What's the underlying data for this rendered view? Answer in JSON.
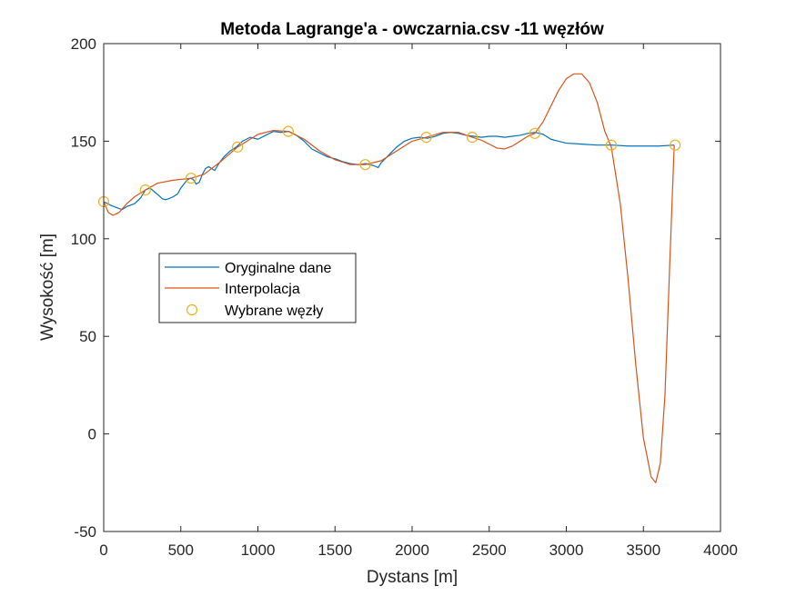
{
  "chart_data": {
    "type": "line",
    "title": "Metoda Lagrange'a - owczarnia.csv -11 węzłów",
    "xlabel": "Dystans [m]",
    "ylabel": "Wysokość [m]",
    "xlim": [
      0,
      4000
    ],
    "ylim": [
      -50,
      200
    ],
    "xticks": [
      0,
      500,
      1000,
      1500,
      2000,
      2500,
      3000,
      3500,
      4000
    ],
    "yticks": [
      -50,
      0,
      50,
      100,
      150,
      200
    ],
    "grid": false,
    "legend_position": "left-middle",
    "series": [
      {
        "name": "Oryginalne dane",
        "style": "line",
        "color": "#0072BD",
        "x": [
          0,
          50,
          100,
          120,
          150,
          200,
          240,
          270,
          300,
          330,
          360,
          380,
          400,
          420,
          450,
          480,
          500,
          520,
          540,
          560,
          580,
          600,
          620,
          640,
          660,
          680,
          700,
          720,
          750,
          780,
          820,
          860,
          900,
          950,
          1000,
          1050,
          1100,
          1150,
          1200,
          1250,
          1300,
          1350,
          1400,
          1450,
          1500,
          1550,
          1600,
          1650,
          1700,
          1750,
          1780,
          1800,
          1850,
          1900,
          1950,
          2000,
          2050,
          2100,
          2150,
          2200,
          2250,
          2300,
          2350,
          2400,
          2450,
          2500,
          2550,
          2600,
          2650,
          2700,
          2750,
          2800,
          2850,
          2900,
          2950,
          3000,
          3100,
          3200,
          3300,
          3400,
          3500,
          3600,
          3700
        ],
        "y": [
          119,
          117,
          115.5,
          115,
          116.5,
          118,
          121,
          125,
          126,
          124,
          122,
          120.5,
          120,
          120.5,
          121.5,
          123,
          126,
          128,
          130,
          131,
          130.5,
          128,
          129,
          133,
          136,
          137,
          136,
          135,
          139,
          142,
          145,
          147,
          150,
          152,
          151,
          153,
          155,
          154.5,
          155,
          153,
          150,
          146,
          144,
          142,
          141,
          139.5,
          138.5,
          138,
          138.5,
          137.5,
          136.5,
          139,
          143,
          147,
          150,
          151.5,
          152,
          151.5,
          152.5,
          154,
          154.5,
          154,
          153,
          152.5,
          152,
          152.5,
          152.5,
          152,
          152.5,
          153,
          154,
          154.5,
          153.5,
          151,
          150,
          149,
          148.5,
          148,
          148,
          147.5,
          147.5,
          147.5,
          148
        ]
      },
      {
        "name": "Interpolacja",
        "style": "line",
        "color": "#D95319",
        "x": [
          0,
          30,
          60,
          100,
          150,
          200,
          270,
          350,
          450,
          566,
          650,
          750,
          868,
          1000,
          1100,
          1200,
          1300,
          1400,
          1500,
          1600,
          1696,
          1800,
          1900,
          2000,
          2092,
          2200,
          2300,
          2390,
          2450,
          2500,
          2550,
          2600,
          2650,
          2700,
          2750,
          2796,
          2850,
          2900,
          2950,
          3000,
          3050,
          3100,
          3150,
          3200,
          3250,
          3292,
          3350,
          3400,
          3450,
          3500,
          3550,
          3580,
          3610,
          3640,
          3670,
          3700
        ],
        "y": [
          119,
          113.5,
          112,
          113.5,
          118,
          121.5,
          125,
          128.5,
          130,
          131,
          133,
          139,
          147,
          153.5,
          155.5,
          155,
          151,
          145,
          140.5,
          138,
          138,
          140,
          145,
          150,
          152,
          154.5,
          154.5,
          152,
          150.5,
          148.5,
          146.5,
          146,
          147.5,
          150,
          152.5,
          154,
          160,
          168,
          176,
          182,
          184.5,
          184.5,
          180,
          170,
          155,
          147,
          118,
          80,
          36,
          -2,
          -22,
          -25,
          -15,
          20,
          85,
          148
        ]
      },
      {
        "name": "Wybrane węzły",
        "style": "markers",
        "marker": "circle",
        "color": "#EDB120",
        "x": [
          0,
          270,
          566,
          868,
          1197,
          1696,
          2092,
          2390,
          2796,
          3292,
          3706
        ],
        "y": [
          119,
          125,
          131,
          147,
          155,
          138,
          152,
          152,
          154,
          148,
          148
        ]
      }
    ]
  }
}
